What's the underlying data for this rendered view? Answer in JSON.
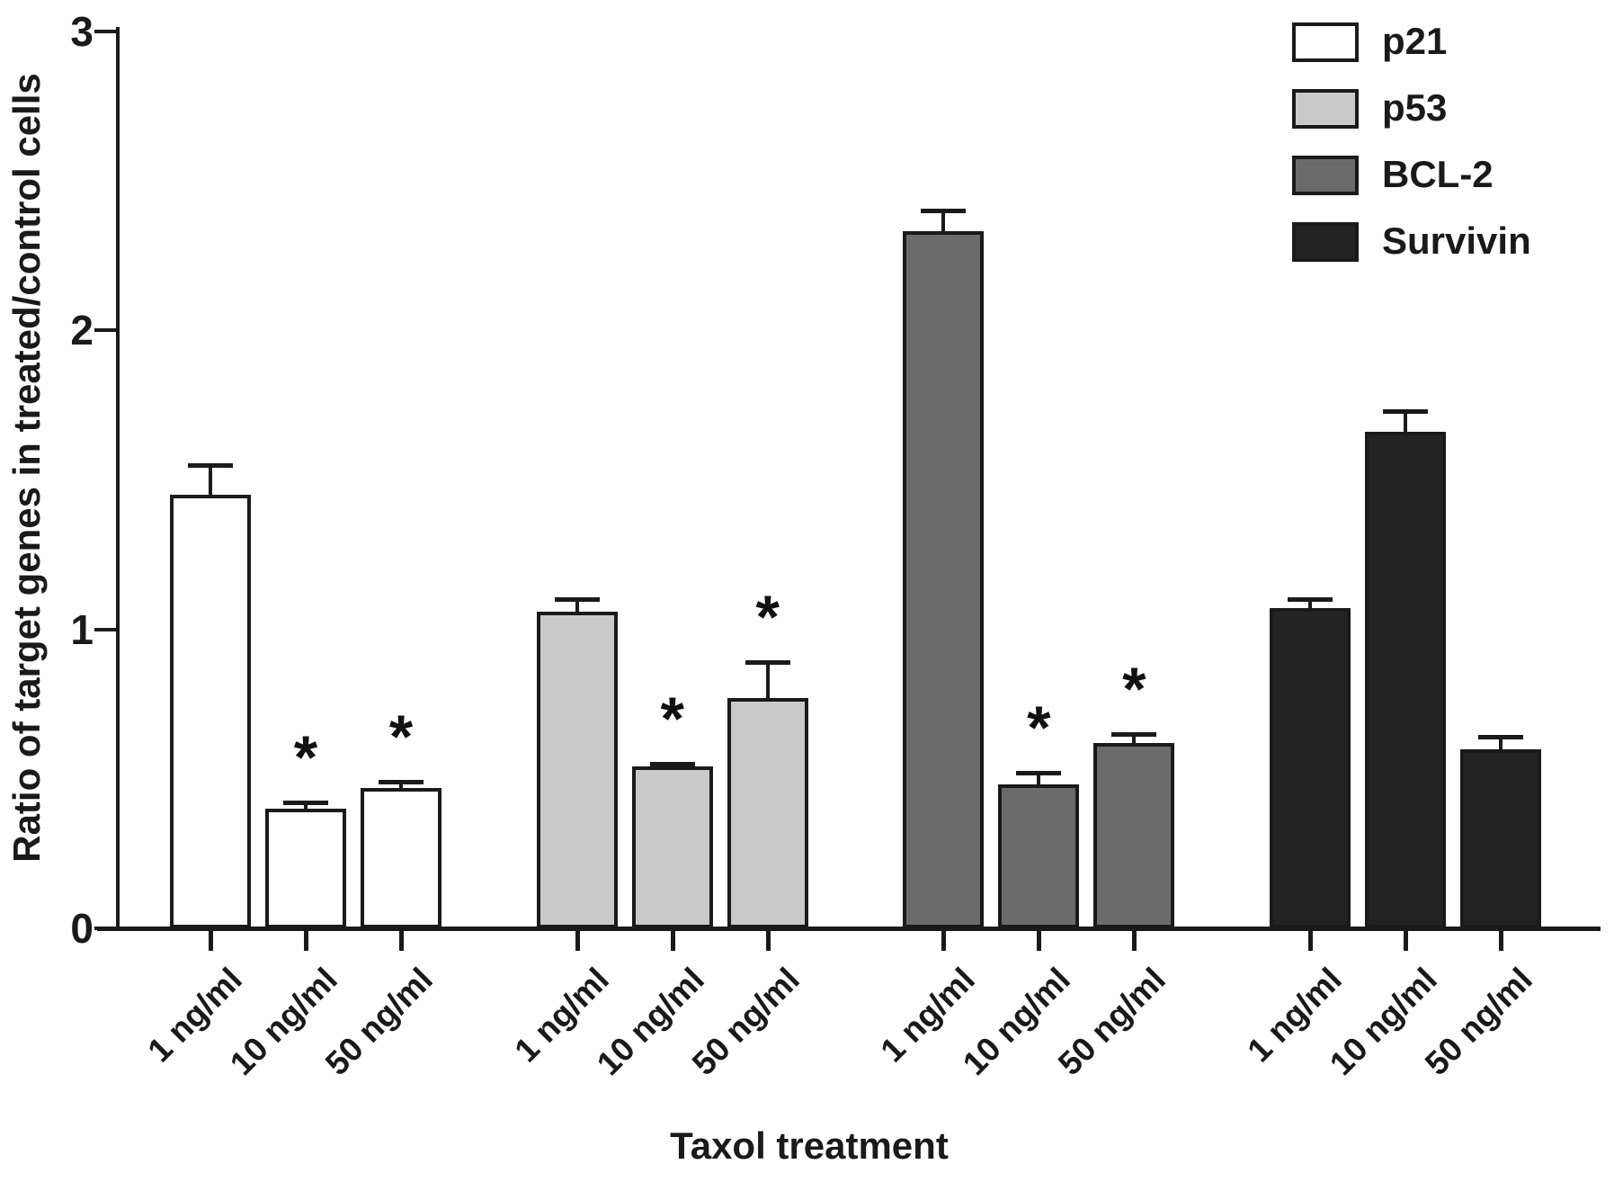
{
  "chart_data": {
    "type": "bar",
    "title": "",
    "xlabel": "Taxol treatment",
    "ylabel": "Ratio of target genes in treated/control cells",
    "ylim": [
      0,
      3
    ],
    "yticks": [
      0,
      1,
      2,
      3
    ],
    "grid": "off",
    "legend_position": "top-right",
    "categories": [
      "1 ng/ml",
      "10 ng/ml",
      "50 ng/ml"
    ],
    "significance_marker": "*",
    "series": [
      {
        "name": "p21",
        "color": "#ffffff",
        "values": [
          1.45,
          0.4,
          0.47
        ],
        "errors": [
          0.1,
          0.02,
          0.02
        ],
        "significant": [
          false,
          true,
          true
        ]
      },
      {
        "name": "p53",
        "color": "#c9c9c9",
        "values": [
          1.06,
          0.54,
          0.77
        ],
        "errors": [
          0.04,
          0.01,
          0.12
        ],
        "significant": [
          false,
          true,
          true
        ]
      },
      {
        "name": "BCL-2",
        "color": "#6b6b6b",
        "values": [
          2.33,
          0.48,
          0.62
        ],
        "errors": [
          0.07,
          0.04,
          0.03
        ],
        "significant": [
          false,
          true,
          true
        ]
      },
      {
        "name": "Survivin",
        "color": "#232323",
        "values": [
          1.07,
          1.66,
          0.6
        ],
        "errors": [
          0.03,
          0.07,
          0.04
        ],
        "significant": [
          false,
          false,
          false
        ]
      }
    ]
  }
}
